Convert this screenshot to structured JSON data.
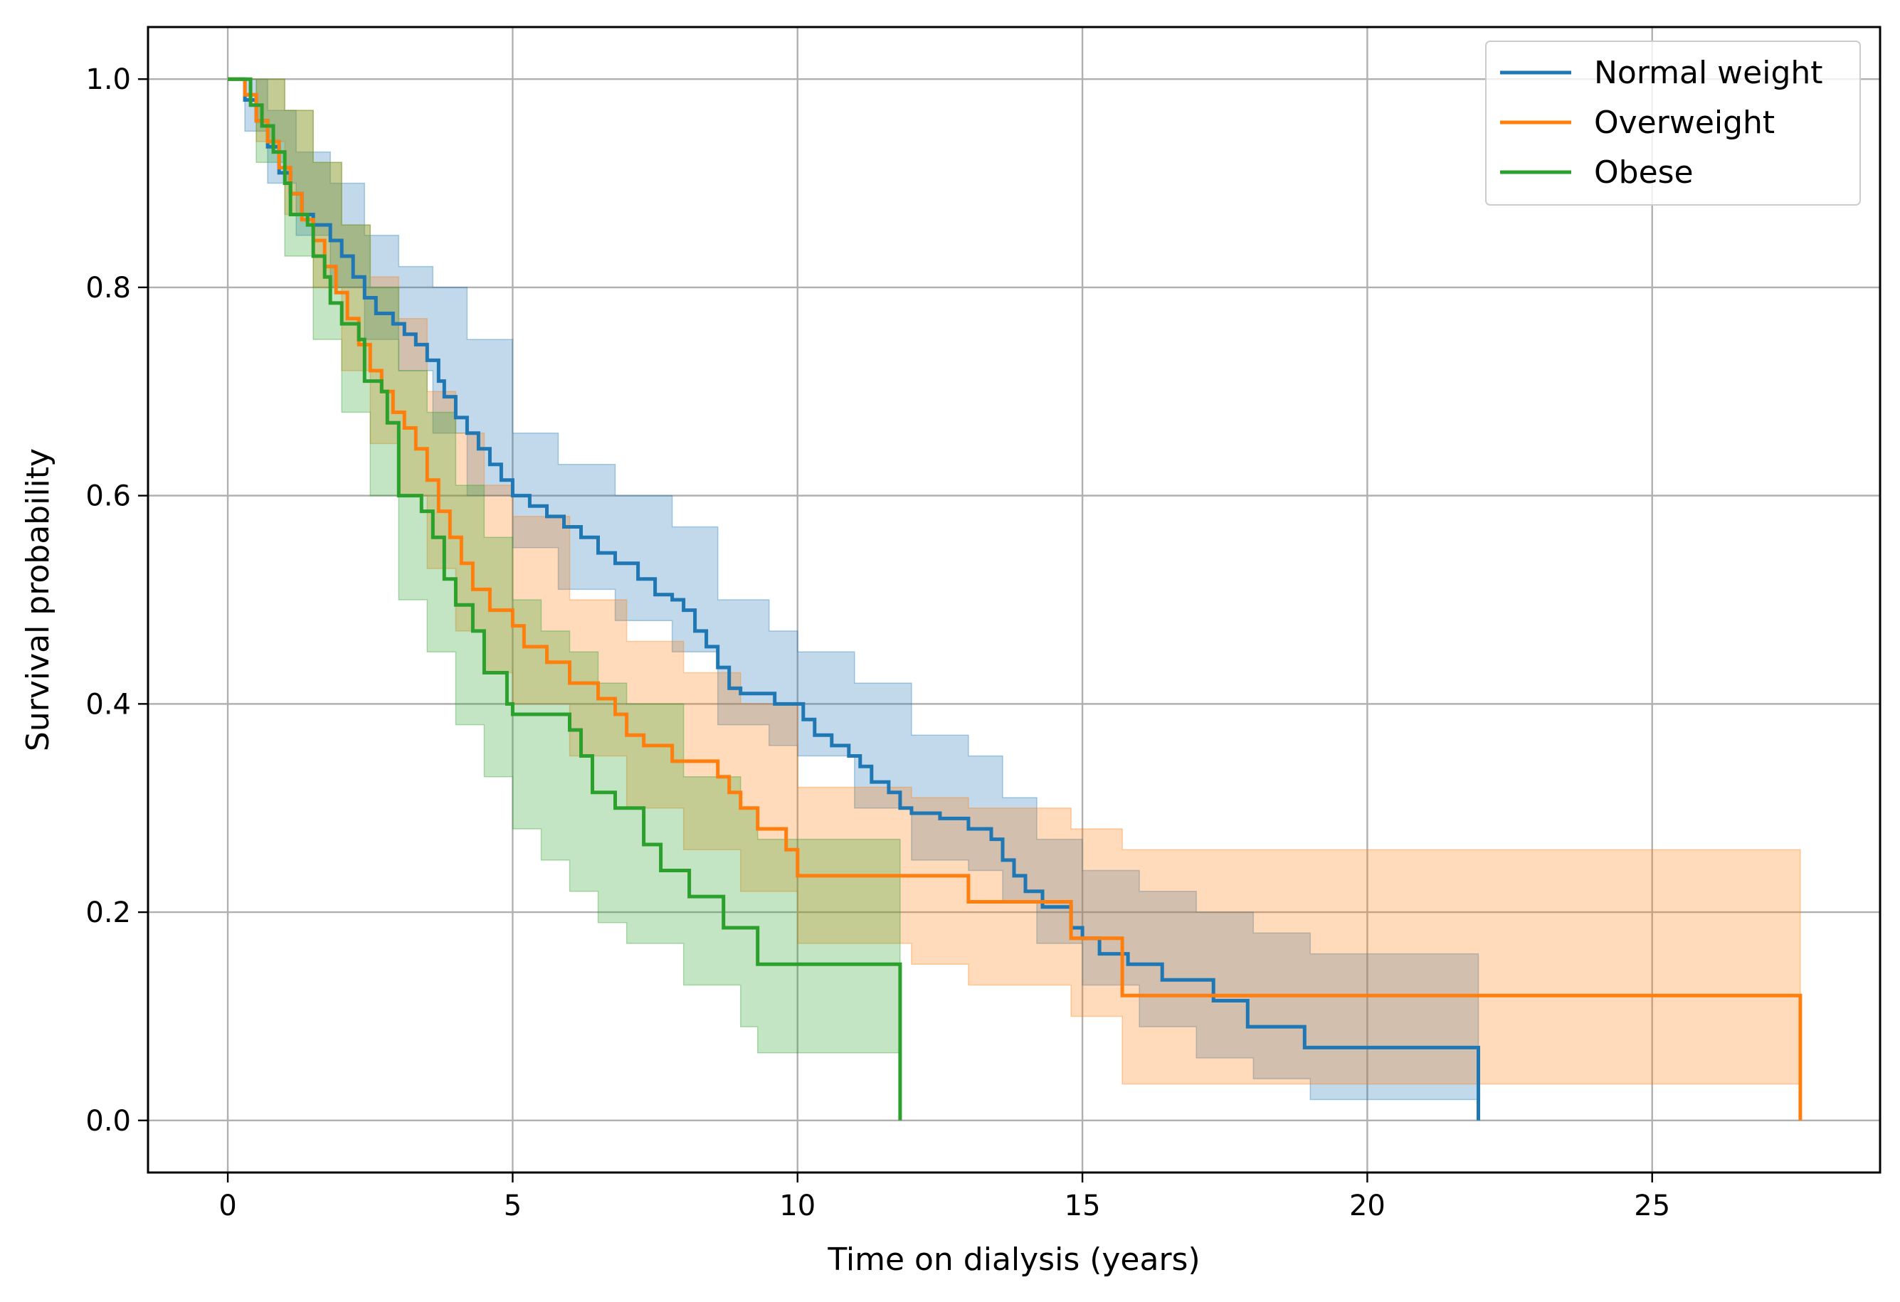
{
  "chart_data": {
    "type": "line",
    "subtype": "kaplan-meier-step",
    "title": "",
    "xlabel": "Time on dialysis (years)",
    "ylabel": "Survival probability",
    "xlim": [
      -1.4,
      29
    ],
    "ylim": [
      -0.05,
      1.05
    ],
    "xticks": [
      0,
      5,
      10,
      15,
      20,
      25
    ],
    "xtick_labels": [
      "0",
      "5",
      "10",
      "15",
      "20",
      "25"
    ],
    "yticks": [
      0.0,
      0.2,
      0.4,
      0.6,
      0.8,
      1.0
    ],
    "ytick_labels": [
      "0.0",
      "0.2",
      "0.4",
      "0.6",
      "0.8",
      "1.0"
    ],
    "grid": true,
    "legend_position": "top-right",
    "series": [
      {
        "name": "Normal weight",
        "color": "#1f77b4",
        "points": [
          [
            0,
            1.0
          ],
          [
            0.2,
            1.0
          ],
          [
            0.3,
            0.98
          ],
          [
            0.5,
            0.96
          ],
          [
            0.7,
            0.935
          ],
          [
            0.9,
            0.91
          ],
          [
            1.1,
            0.89
          ],
          [
            1.3,
            0.87
          ],
          [
            1.5,
            0.86
          ],
          [
            1.8,
            0.845
          ],
          [
            2.0,
            0.83
          ],
          [
            2.2,
            0.81
          ],
          [
            2.4,
            0.79
          ],
          [
            2.6,
            0.775
          ],
          [
            2.9,
            0.765
          ],
          [
            3.1,
            0.755
          ],
          [
            3.3,
            0.745
          ],
          [
            3.5,
            0.73
          ],
          [
            3.7,
            0.71
          ],
          [
            3.8,
            0.695
          ],
          [
            4.0,
            0.675
          ],
          [
            4.2,
            0.66
          ],
          [
            4.4,
            0.645
          ],
          [
            4.6,
            0.63
          ],
          [
            4.8,
            0.615
          ],
          [
            5.0,
            0.6
          ],
          [
            5.3,
            0.59
          ],
          [
            5.6,
            0.58
          ],
          [
            5.9,
            0.57
          ],
          [
            6.2,
            0.56
          ],
          [
            6.5,
            0.545
          ],
          [
            6.8,
            0.535
          ],
          [
            7.2,
            0.52
          ],
          [
            7.5,
            0.505
          ],
          [
            7.8,
            0.5
          ],
          [
            8.0,
            0.49
          ],
          [
            8.2,
            0.47
          ],
          [
            8.4,
            0.455
          ],
          [
            8.6,
            0.435
          ],
          [
            8.8,
            0.415
          ],
          [
            9.0,
            0.41
          ],
          [
            9.5,
            0.41
          ],
          [
            9.6,
            0.4
          ],
          [
            10.0,
            0.4
          ],
          [
            10.1,
            0.385
          ],
          [
            10.3,
            0.37
          ],
          [
            10.6,
            0.36
          ],
          [
            10.9,
            0.35
          ],
          [
            11.1,
            0.34
          ],
          [
            11.3,
            0.325
          ],
          [
            11.6,
            0.315
          ],
          [
            11.8,
            0.3
          ],
          [
            12.0,
            0.295
          ],
          [
            12.5,
            0.29
          ],
          [
            13.0,
            0.28
          ],
          [
            13.4,
            0.27
          ],
          [
            13.6,
            0.25
          ],
          [
            13.8,
            0.235
          ],
          [
            14.0,
            0.22
          ],
          [
            14.3,
            0.205
          ],
          [
            14.8,
            0.185
          ],
          [
            15.0,
            0.175
          ],
          [
            15.3,
            0.16
          ],
          [
            15.8,
            0.15
          ],
          [
            16.4,
            0.135
          ],
          [
            17.3,
            0.115
          ],
          [
            17.9,
            0.09
          ],
          [
            18.9,
            0.07
          ],
          [
            21.95,
            0.07
          ],
          [
            21.95,
            0.0
          ]
        ],
        "ci_lower": [
          [
            0,
            1.0
          ],
          [
            0.3,
            0.95
          ],
          [
            0.7,
            0.9
          ],
          [
            1.2,
            0.85
          ],
          [
            1.8,
            0.8
          ],
          [
            2.4,
            0.75
          ],
          [
            3.0,
            0.72
          ],
          [
            3.6,
            0.66
          ],
          [
            4.2,
            0.6
          ],
          [
            5.0,
            0.55
          ],
          [
            5.8,
            0.51
          ],
          [
            6.8,
            0.48
          ],
          [
            7.8,
            0.45
          ],
          [
            8.6,
            0.38
          ],
          [
            9.5,
            0.36
          ],
          [
            10.0,
            0.35
          ],
          [
            11.0,
            0.3
          ],
          [
            12.0,
            0.25
          ],
          [
            13.0,
            0.24
          ],
          [
            13.6,
            0.21
          ],
          [
            14.2,
            0.17
          ],
          [
            15.0,
            0.13
          ],
          [
            16.0,
            0.09
          ],
          [
            17.0,
            0.06
          ],
          [
            18.0,
            0.04
          ],
          [
            19.0,
            0.02
          ],
          [
            21.95,
            0.02
          ]
        ],
        "ci_upper": [
          [
            0,
            1.0
          ],
          [
            0.3,
            1.0
          ],
          [
            0.7,
            0.97
          ],
          [
            1.2,
            0.93
          ],
          [
            1.8,
            0.9
          ],
          [
            2.4,
            0.85
          ],
          [
            3.0,
            0.82
          ],
          [
            3.6,
            0.8
          ],
          [
            4.2,
            0.75
          ],
          [
            5.0,
            0.66
          ],
          [
            5.8,
            0.63
          ],
          [
            6.8,
            0.6
          ],
          [
            7.8,
            0.57
          ],
          [
            8.6,
            0.5
          ],
          [
            9.5,
            0.47
          ],
          [
            10.0,
            0.45
          ],
          [
            11.0,
            0.42
          ],
          [
            12.0,
            0.37
          ],
          [
            13.0,
            0.35
          ],
          [
            13.6,
            0.31
          ],
          [
            14.2,
            0.27
          ],
          [
            15.0,
            0.24
          ],
          [
            16.0,
            0.22
          ],
          [
            17.0,
            0.2
          ],
          [
            18.0,
            0.18
          ],
          [
            19.0,
            0.16
          ],
          [
            21.95,
            0.155
          ]
        ]
      },
      {
        "name": "Overweight",
        "color": "#ff7f0e",
        "points": [
          [
            0,
            1.0
          ],
          [
            0.2,
            1.0
          ],
          [
            0.3,
            0.985
          ],
          [
            0.5,
            0.96
          ],
          [
            0.7,
            0.94
          ],
          [
            0.9,
            0.915
          ],
          [
            1.1,
            0.89
          ],
          [
            1.3,
            0.865
          ],
          [
            1.5,
            0.845
          ],
          [
            1.7,
            0.82
          ],
          [
            1.9,
            0.795
          ],
          [
            2.1,
            0.77
          ],
          [
            2.3,
            0.745
          ],
          [
            2.5,
            0.72
          ],
          [
            2.7,
            0.7
          ],
          [
            2.9,
            0.68
          ],
          [
            3.1,
            0.665
          ],
          [
            3.3,
            0.645
          ],
          [
            3.5,
            0.615
          ],
          [
            3.7,
            0.585
          ],
          [
            3.9,
            0.56
          ],
          [
            4.1,
            0.535
          ],
          [
            4.3,
            0.51
          ],
          [
            4.6,
            0.49
          ],
          [
            5.0,
            0.475
          ],
          [
            5.2,
            0.455
          ],
          [
            5.6,
            0.44
          ],
          [
            6.0,
            0.42
          ],
          [
            6.5,
            0.405
          ],
          [
            6.8,
            0.39
          ],
          [
            7.0,
            0.37
          ],
          [
            7.3,
            0.36
          ],
          [
            7.8,
            0.345
          ],
          [
            8.6,
            0.33
          ],
          [
            8.8,
            0.315
          ],
          [
            9.0,
            0.3
          ],
          [
            9.3,
            0.28
          ],
          [
            9.8,
            0.26
          ],
          [
            10.0,
            0.235
          ],
          [
            12.9,
            0.235
          ],
          [
            13.0,
            0.21
          ],
          [
            14.8,
            0.21
          ],
          [
            14.8,
            0.175
          ],
          [
            15.7,
            0.175
          ],
          [
            15.7,
            0.12
          ],
          [
            27.6,
            0.12
          ],
          [
            27.6,
            0.0
          ]
        ],
        "ci_lower": [
          [
            0,
            1.0
          ],
          [
            0.5,
            0.94
          ],
          [
            1.0,
            0.87
          ],
          [
            1.5,
            0.8
          ],
          [
            2.0,
            0.72
          ],
          [
            2.5,
            0.65
          ],
          [
            3.0,
            0.6
          ],
          [
            3.5,
            0.53
          ],
          [
            4.0,
            0.47
          ],
          [
            4.5,
            0.43
          ],
          [
            5.0,
            0.4
          ],
          [
            6.0,
            0.35
          ],
          [
            7.0,
            0.3
          ],
          [
            8.0,
            0.26
          ],
          [
            9.0,
            0.22
          ],
          [
            10.0,
            0.17
          ],
          [
            12.0,
            0.15
          ],
          [
            13.0,
            0.13
          ],
          [
            14.8,
            0.1
          ],
          [
            15.7,
            0.035
          ],
          [
            27.6,
            0.035
          ]
        ],
        "ci_upper": [
          [
            0,
            1.0
          ],
          [
            0.5,
            1.0
          ],
          [
            1.0,
            0.97
          ],
          [
            1.5,
            0.92
          ],
          [
            2.0,
            0.86
          ],
          [
            2.5,
            0.81
          ],
          [
            3.0,
            0.77
          ],
          [
            3.5,
            0.7
          ],
          [
            4.0,
            0.66
          ],
          [
            4.5,
            0.61
          ],
          [
            5.0,
            0.58
          ],
          [
            6.0,
            0.5
          ],
          [
            7.0,
            0.46
          ],
          [
            8.0,
            0.43
          ],
          [
            9.0,
            0.4
          ],
          [
            10.0,
            0.32
          ],
          [
            12.0,
            0.31
          ],
          [
            13.0,
            0.3
          ],
          [
            14.8,
            0.28
          ],
          [
            15.7,
            0.26
          ],
          [
            27.6,
            0.26
          ]
        ]
      },
      {
        "name": "Obese",
        "color": "#2ca02c",
        "points": [
          [
            0,
            1.0
          ],
          [
            0.25,
            1.0
          ],
          [
            0.4,
            0.975
          ],
          [
            0.6,
            0.955
          ],
          [
            0.8,
            0.93
          ],
          [
            1.0,
            0.9
          ],
          [
            1.1,
            0.87
          ],
          [
            1.4,
            0.86
          ],
          [
            1.5,
            0.83
          ],
          [
            1.7,
            0.81
          ],
          [
            1.8,
            0.785
          ],
          [
            2.0,
            0.765
          ],
          [
            2.3,
            0.75
          ],
          [
            2.4,
            0.71
          ],
          [
            2.7,
            0.7
          ],
          [
            2.8,
            0.67
          ],
          [
            3.0,
            0.6
          ],
          [
            3.4,
            0.585
          ],
          [
            3.6,
            0.56
          ],
          [
            3.8,
            0.52
          ],
          [
            4.0,
            0.495
          ],
          [
            4.3,
            0.47
          ],
          [
            4.5,
            0.43
          ],
          [
            4.9,
            0.4
          ],
          [
            5.0,
            0.39
          ],
          [
            6.0,
            0.375
          ],
          [
            6.2,
            0.35
          ],
          [
            6.4,
            0.315
          ],
          [
            6.8,
            0.3
          ],
          [
            7.3,
            0.265
          ],
          [
            7.6,
            0.24
          ],
          [
            8.1,
            0.215
          ],
          [
            8.7,
            0.185
          ],
          [
            9.3,
            0.15
          ],
          [
            11.8,
            0.15
          ],
          [
            11.8,
            0.0
          ]
        ],
        "ci_lower": [
          [
            0,
            1.0
          ],
          [
            0.5,
            0.92
          ],
          [
            1.0,
            0.83
          ],
          [
            1.5,
            0.75
          ],
          [
            2.0,
            0.68
          ],
          [
            2.5,
            0.6
          ],
          [
            3.0,
            0.5
          ],
          [
            3.5,
            0.45
          ],
          [
            4.0,
            0.38
          ],
          [
            4.5,
            0.33
          ],
          [
            5.0,
            0.28
          ],
          [
            5.5,
            0.25
          ],
          [
            6.0,
            0.22
          ],
          [
            6.5,
            0.19
          ],
          [
            7.0,
            0.17
          ],
          [
            8.0,
            0.13
          ],
          [
            9.0,
            0.09
          ],
          [
            9.3,
            0.065
          ],
          [
            11.8,
            0.065
          ]
        ],
        "ci_upper": [
          [
            0,
            1.0
          ],
          [
            0.5,
            1.0
          ],
          [
            1.0,
            0.97
          ],
          [
            1.5,
            0.92
          ],
          [
            2.0,
            0.86
          ],
          [
            2.5,
            0.8
          ],
          [
            3.0,
            0.72
          ],
          [
            3.5,
            0.68
          ],
          [
            4.0,
            0.61
          ],
          [
            4.5,
            0.56
          ],
          [
            5.0,
            0.5
          ],
          [
            5.5,
            0.47
          ],
          [
            6.0,
            0.45
          ],
          [
            6.5,
            0.42
          ],
          [
            7.0,
            0.4
          ],
          [
            8.0,
            0.33
          ],
          [
            9.0,
            0.3
          ],
          [
            9.3,
            0.27
          ],
          [
            11.8,
            0.27
          ]
        ]
      }
    ]
  }
}
